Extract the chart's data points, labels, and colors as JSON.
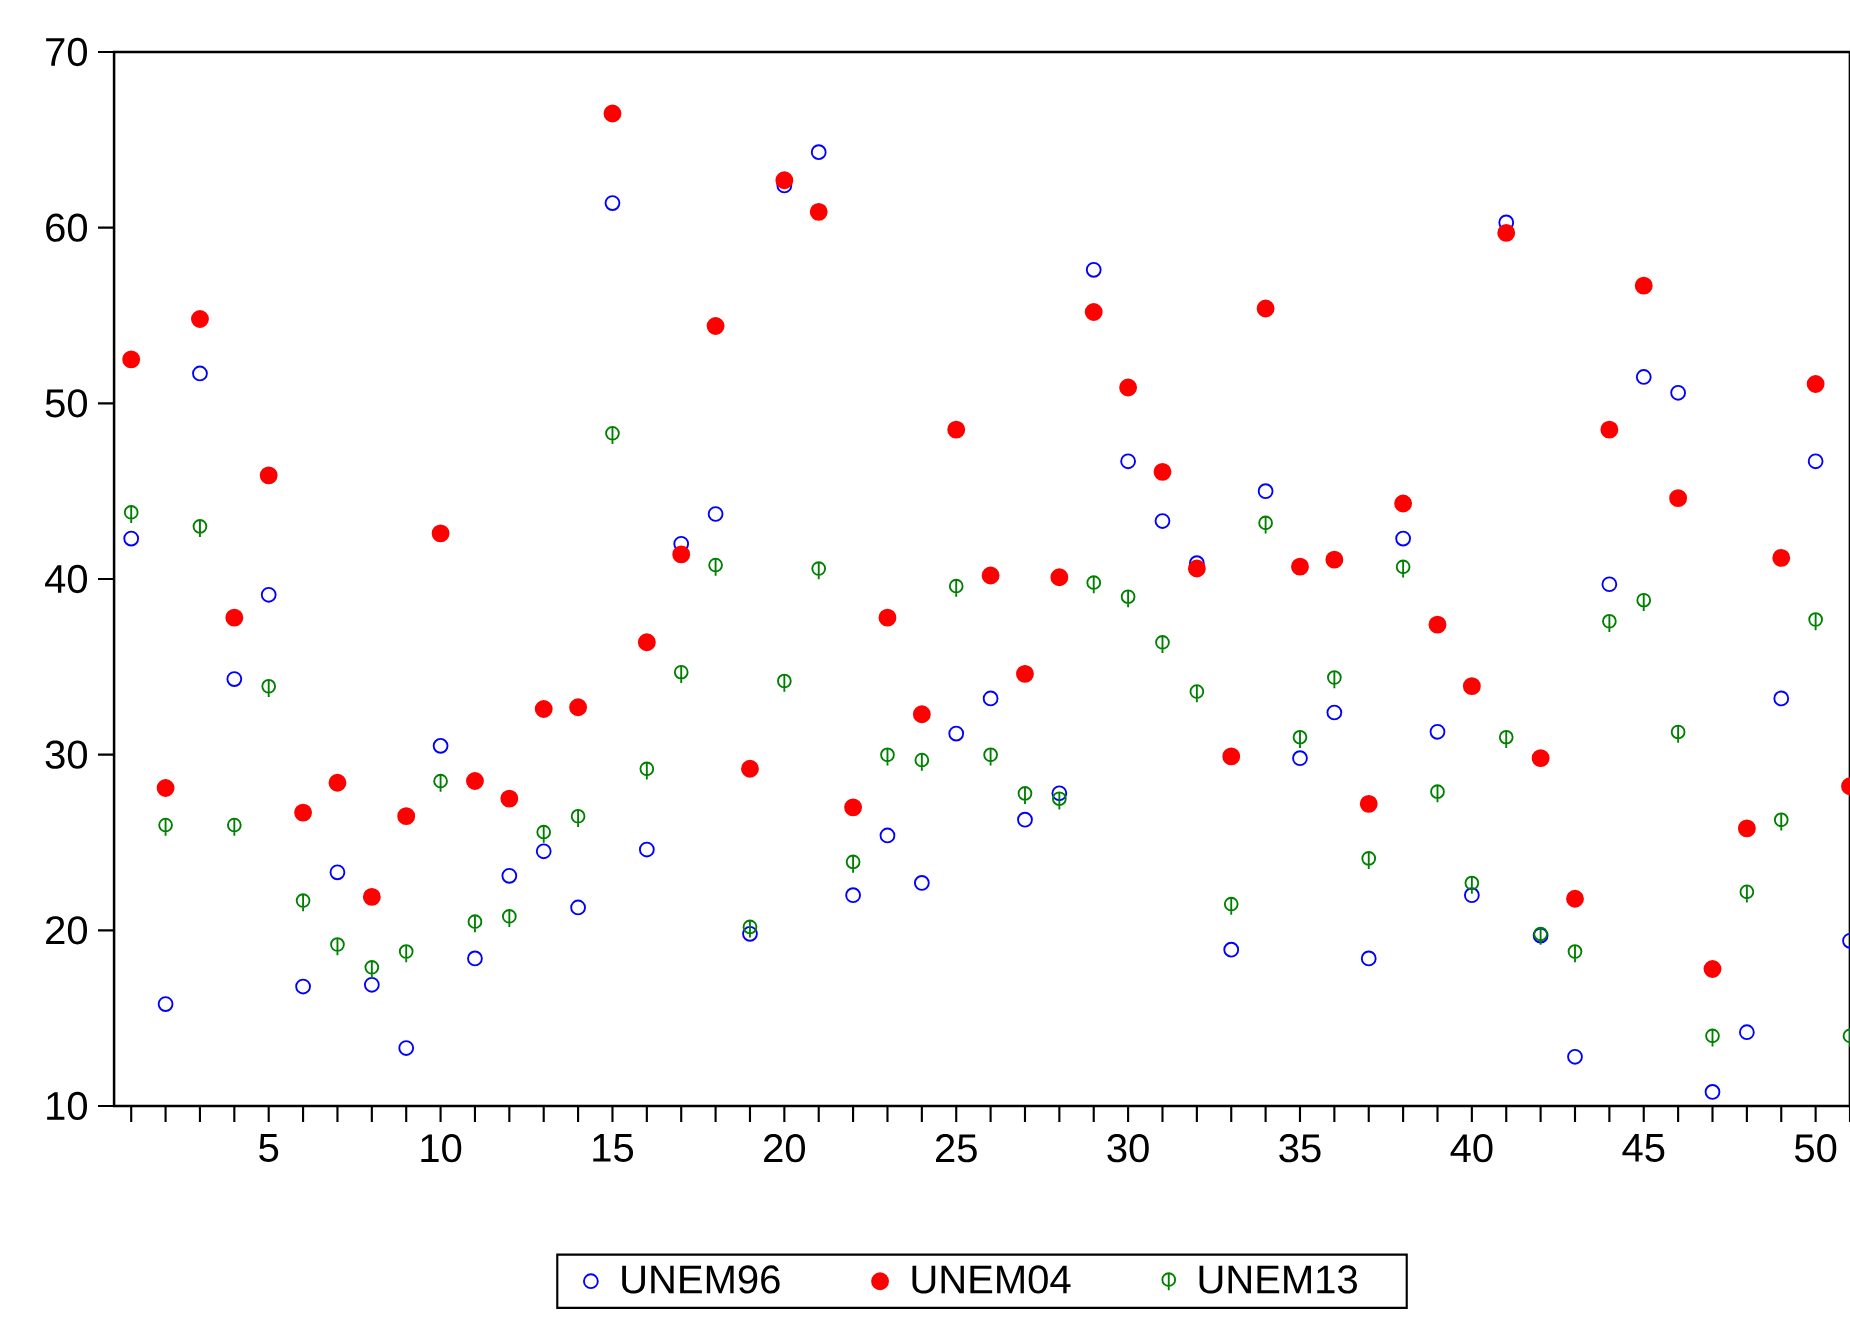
{
  "chart_data": {
    "type": "scatter",
    "x": [
      1,
      2,
      3,
      4,
      5,
      6,
      7,
      8,
      9,
      10,
      11,
      12,
      13,
      14,
      15,
      16,
      17,
      18,
      19,
      20,
      21,
      22,
      23,
      24,
      25,
      26,
      27,
      28,
      29,
      30,
      31,
      32,
      33,
      34,
      35,
      36,
      37,
      38,
      39,
      40,
      41,
      42,
      43,
      44,
      45,
      46,
      47,
      48,
      49,
      50,
      51
    ],
    "series": [
      {
        "name": "UNEM96",
        "color": "#0000ff",
        "marker": "circle",
        "values": [
          42.3,
          15.8,
          51.7,
          34.3,
          39.1,
          16.8,
          23.3,
          16.9,
          13.3,
          30.5,
          18.4,
          23.1,
          24.5,
          21.3,
          61.4,
          24.6,
          42.0,
          43.7,
          19.8,
          62.4,
          64.3,
          22.0,
          25.4,
          22.7,
          31.2,
          33.2,
          26.3,
          27.8,
          57.6,
          46.7,
          43.3,
          40.9,
          18.9,
          45.0,
          29.8,
          32.4,
          18.4,
          42.3,
          31.3,
          22.0,
          60.3,
          19.7,
          12.8,
          39.7,
          51.5,
          50.6,
          10.8,
          14.2,
          33.2,
          46.7,
          19.4
        ]
      },
      {
        "name": "UNEM04",
        "color": "#ff0000",
        "marker": "circle",
        "values": [
          52.5,
          28.1,
          54.8,
          37.8,
          45.9,
          26.7,
          28.4,
          21.9,
          26.5,
          42.6,
          28.5,
          27.5,
          32.6,
          32.7,
          66.5,
          36.4,
          41.4,
          54.4,
          29.2,
          62.7,
          60.9,
          27.0,
          37.8,
          32.3,
          48.5,
          40.2,
          34.6,
          40.1,
          55.2,
          50.9,
          46.1,
          40.6,
          29.9,
          55.4,
          40.7,
          41.1,
          27.2,
          44.3,
          37.4,
          33.9,
          59.7,
          29.8,
          21.8,
          48.5,
          56.7,
          44.6,
          17.8,
          25.8,
          41.2,
          51.1,
          28.2
        ]
      },
      {
        "name": "UNEM13",
        "color": "#008000",
        "values": [
          43.7,
          25.9,
          42.9,
          25.9,
          33.8,
          21.6,
          19.1,
          17.8,
          18.7,
          28.4,
          20.4,
          20.7,
          25.5,
          26.4,
          48.2,
          29.1,
          34.6,
          40.7,
          20.1,
          34.1,
          40.5,
          23.8,
          29.9,
          29.6,
          39.5,
          29.9,
          27.7,
          27.4,
          39.7,
          38.9,
          36.3,
          33.5,
          21.4,
          43.1,
          30.9,
          34.3,
          24.0,
          40.6,
          27.8,
          22.6,
          30.9,
          19.7,
          18.7,
          37.5,
          38.7,
          31.2,
          13.9,
          22.1,
          26.2,
          37.6,
          13.9
        ]
      }
    ],
    "xlim": [
      0.5,
      51
    ],
    "xticks": [
      {
        "value": 1,
        "label": null
      },
      {
        "value": 2,
        "label": null
      },
      {
        "value": 3,
        "label": null
      },
      {
        "value": 4,
        "label": null
      },
      5,
      {
        "value": 6,
        "label": null
      },
      {
        "value": 7,
        "label": null
      },
      {
        "value": 8,
        "label": null
      },
      {
        "value": 9,
        "label": null
      },
      10,
      {
        "value": 11,
        "label": null
      },
      {
        "value": 12,
        "label": null
      },
      {
        "value": 13,
        "label": null
      },
      {
        "value": 14,
        "label": null
      },
      15,
      {
        "value": 16,
        "label": null
      },
      {
        "value": 17,
        "label": null
      },
      {
        "value": 18,
        "label": null
      },
      {
        "value": 19,
        "label": null
      },
      20,
      {
        "value": 21,
        "label": null
      },
      {
        "value": 22,
        "label": null
      },
      {
        "value": 23,
        "label": null
      },
      {
        "value": 24,
        "label": null
      },
      25,
      {
        "value": 26,
        "label": null
      },
      {
        "value": 27,
        "label": null
      },
      {
        "value": 28,
        "label": null
      },
      {
        "value": 29,
        "label": null
      },
      30,
      {
        "value": 31,
        "label": null
      },
      {
        "value": 32,
        "label": null
      },
      {
        "value": 33,
        "label": null
      },
      {
        "value": 34,
        "label": null
      },
      35,
      {
        "value": 36,
        "label": null
      },
      {
        "value": 37,
        "label": null
      },
      {
        "value": 38,
        "label": null
      },
      {
        "value": 39,
        "label": null
      },
      40,
      {
        "value": 41,
        "label": null
      },
      {
        "value": 42,
        "label": null
      },
      {
        "value": 43,
        "label": null
      },
      {
        "value": 44,
        "label": null
      },
      45,
      {
        "value": 46,
        "label": null
      },
      {
        "value": 47,
        "label": null
      },
      {
        "value": 48,
        "label": null
      },
      {
        "value": 49,
        "label": null
      },
      50,
      {
        "value": 51,
        "label": null
      }
    ],
    "ylim": [
      10,
      70
    ],
    "yticks": [
      10,
      20,
      30,
      40,
      50,
      60,
      70
    ],
    "legend": "bottom"
  }
}
